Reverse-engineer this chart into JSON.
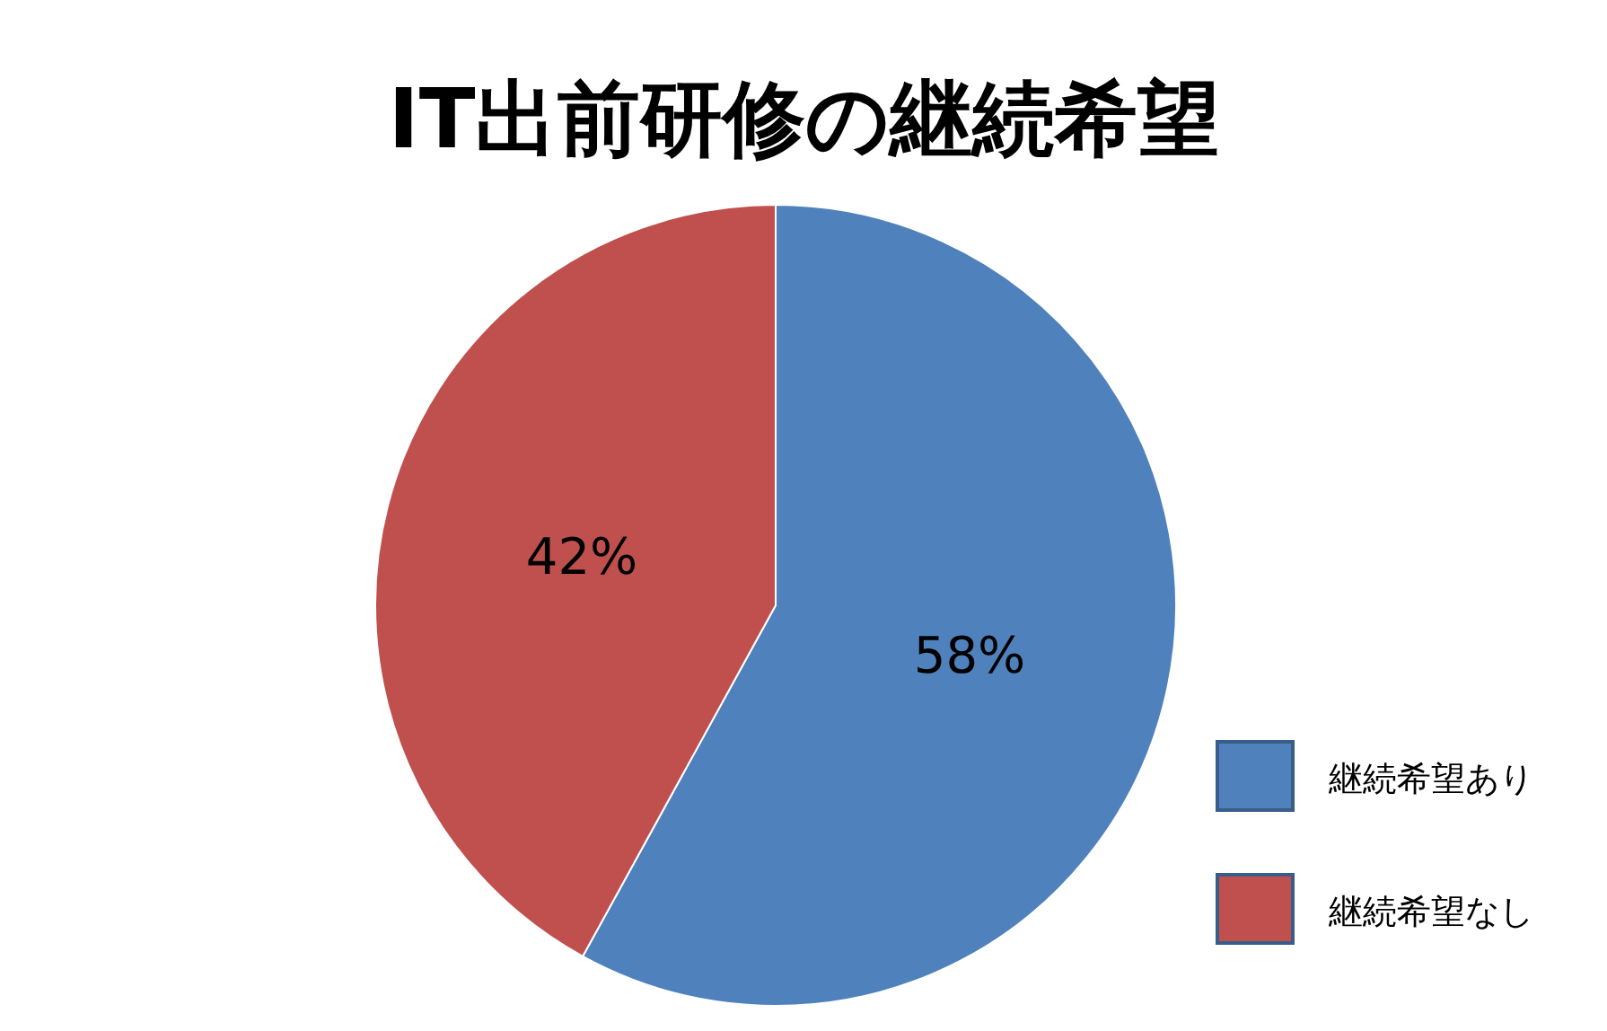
{
  "chart_data": {
    "type": "pie",
    "title": "IT出前研修の継続希望",
    "categories": [
      "継続希望あり",
      "継続希望なし"
    ],
    "values": [
      58,
      42
    ],
    "colors": [
      "#4f81bd",
      "#c0504d"
    ],
    "value_labels": [
      "58%",
      "42%"
    ],
    "legend": "right"
  }
}
